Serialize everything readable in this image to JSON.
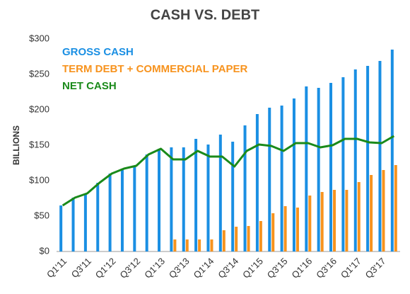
{
  "chart_data": {
    "type": "bar-line",
    "title": "CASH VS. DEBT",
    "y_label": "BILLIONS",
    "categories": [
      "Q1'11",
      null,
      "Q3'11",
      null,
      "Q1'12",
      null,
      "Q3'12",
      null,
      "Q1'13",
      null,
      "Q3'13",
      null,
      "Q1'14",
      null,
      "Q3'14",
      null,
      "Q1'15",
      null,
      "Q3'15",
      null,
      "Q1'16",
      null,
      "Q3'16",
      null,
      "Q1'17",
      null,
      "Q3'17",
      null
    ],
    "series": [
      {
        "name": "GROSS CASH",
        "color": "#1a8fe3",
        "kind": "bar",
        "values": [
          65,
          76,
          82,
          97,
          110,
          117,
          121,
          137,
          145,
          147,
          147,
          159,
          151,
          165,
          155,
          178,
          194,
          203,
          206,
          216,
          233,
          231,
          238,
          246,
          257,
          262,
          269,
          285
        ]
      },
      {
        "name": "TERM DEBT + COMMERCIAL PAPER",
        "color": "#f7931e",
        "kind": "bar",
        "values": [
          0,
          0,
          0,
          0,
          0,
          0,
          0,
          0,
          0,
          17,
          17,
          17,
          17,
          30,
          35,
          36,
          43,
          54,
          64,
          62,
          79,
          84,
          87,
          87,
          98,
          108,
          115,
          122
        ]
      },
      {
        "name": "NET CASH",
        "color": "#1a8a1a",
        "kind": "line",
        "values": [
          65,
          76,
          82,
          97,
          110,
          117,
          121,
          137,
          145,
          130,
          130,
          142,
          134,
          134,
          120,
          142,
          151,
          149,
          142,
          153,
          153,
          147,
          150,
          159,
          159,
          154,
          153,
          163
        ]
      }
    ],
    "ylim": [
      0,
      300
    ],
    "yticks": [
      {
        "value": 0,
        "label": "$0"
      },
      {
        "value": 50,
        "label": "$50"
      },
      {
        "value": 100,
        "label": "$100"
      },
      {
        "value": 150,
        "label": "$150"
      },
      {
        "value": 200,
        "label": "$200"
      },
      {
        "value": 250,
        "label": "$250"
      },
      {
        "value": 300,
        "label": "$300"
      }
    ]
  }
}
